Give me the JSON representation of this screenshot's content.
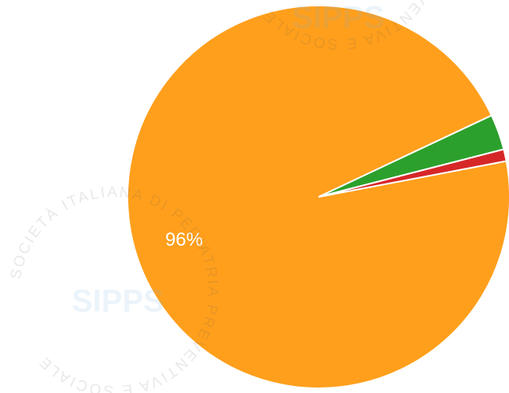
{
  "chart_data": {
    "type": "pie",
    "categories": [
      null,
      null,
      null
    ],
    "values": [
      96,
      3,
      1
    ],
    "value_labels": [
      "96%",
      null,
      null
    ],
    "colors": [
      "#ff9f1c",
      "#2ca02c",
      "#d62728"
    ],
    "start_angle": -10.8,
    "watermark": {
      "name": "SIPPS",
      "ring": "SOCIETÀ ITALIANA DI PEDIATRIA PREVENTIVA E SOCIALE"
    }
  }
}
